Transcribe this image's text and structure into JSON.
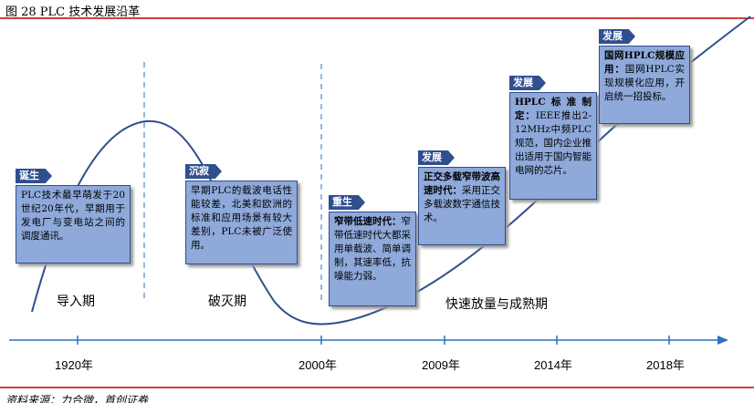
{
  "header": {
    "title": "图 28 PLC 技术发展沿革"
  },
  "stages": [
    {
      "tag": "诞生",
      "text": "PLC技术最早萌发于20世纪20年代，早期用于发电厂与变电站之间的调度通讯。"
    },
    {
      "tag": "沉寂",
      "text": "早期PLC的载波电话性能较差，北美和欧洲的标准和应用场景有较大差别，PLC未被广泛使用。"
    },
    {
      "tag": "重生",
      "heading": "窄带低速时代：",
      "text": "窄带低速时代大都采用单载波、简单调制，其速率低，抗噪能力弱。"
    },
    {
      "tag": "发展",
      "heading": "正交多载窄带波高速时代：",
      "text": "采用正交多载波数字通信技术。"
    },
    {
      "tag": "发展",
      "heading": "HPLC标准制定：",
      "text": "IEEE推出2-12MHz中频PLC规范，国内企业推出适用于国内智能电网的芯片。"
    },
    {
      "tag": "发展",
      "heading": "国网HPLC规模应用：",
      "text": "国网HPLC实现规模化应用，开启统一招投标。"
    }
  ],
  "phases": [
    "导入期",
    "破灭期",
    "快速放量与成熟期"
  ],
  "timeline": {
    "labels": [
      "1920年",
      "2000年",
      "2009年",
      "2014年",
      "2018年"
    ]
  },
  "source": "资料来源：力合微，首创证券"
}
